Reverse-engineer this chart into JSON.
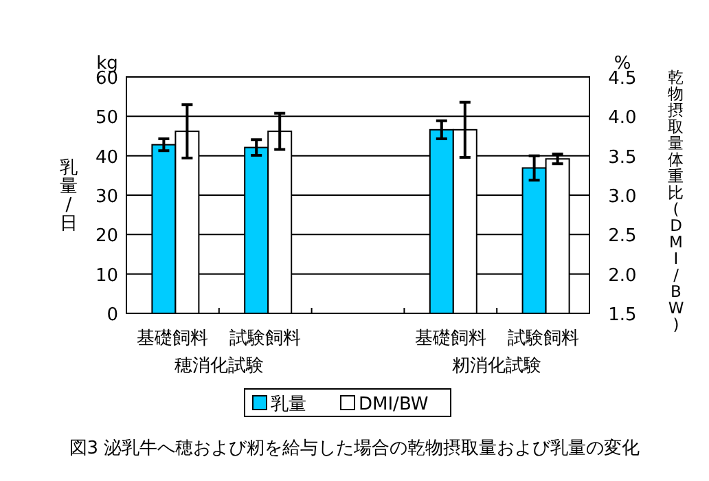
{
  "chart_data": {
    "type": "bar",
    "title": "図3 泌乳牛へ穂および籾を給与した場合の乾物摂取量および乳量の変化",
    "ylabel": "乳量/日",
    "y2label": "乾物摂取量体重比(DMI/BW)",
    "categories": [
      "基礎飼料",
      "試験飼料",
      null,
      "基礎飼料",
      "試験飼料"
    ],
    "series": [
      {
        "name": "乳量",
        "color": "#00ccff",
        "values": [
          42.8,
          42.1,
          null,
          46.6,
          36.9
        ],
        "errors": [
          1.5,
          2.0,
          null,
          2.3,
          3.1
        ]
      },
      {
        "name": "DMI/BW",
        "color": "#ffffff",
        "axis": "y2",
        "values": [
          3.81,
          3.81,
          null,
          3.83,
          3.46
        ],
        "errors": [
          0.34,
          0.23,
          null,
          0.35,
          0.06
        ]
      }
    ],
    "annotations": [
      "kg",
      "%",
      "穂消化試験",
      "籾消化試験"
    ],
    "ylim": [
      0,
      60
    ],
    "yticks": [
      0,
      10,
      20,
      30,
      40,
      50,
      60
    ],
    "y2lim": [
      1.5,
      4.5
    ],
    "y2ticks": [
      1.5,
      {
        "value": 2,
        "label": "2.0"
      },
      2.5,
      {
        "value": 3,
        "label": "3.0"
      },
      3.5,
      {
        "value": 4,
        "label": "4.0"
      },
      4.5
    ],
    "grid": "y",
    "legend": "bottom"
  }
}
